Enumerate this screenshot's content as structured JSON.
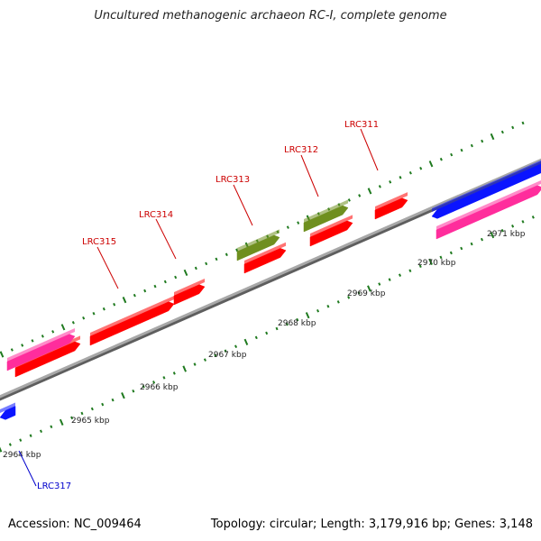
{
  "title": "Uncultured methanogenic archaeon RC-I, complete genome",
  "footer": {
    "accession": "Accession: NC_009464",
    "summary": "Topology: circular; Length: 3,179,916 bp; Genes: 3,148"
  },
  "colors": {
    "backbone": "#8c8c8c",
    "ticks": "#1f7a1f",
    "label_forward": "#cc0000",
    "label_reverse": "#0000cc",
    "gene_red": "#ff0000",
    "gene_pink": "#ff2d9c",
    "gene_olive": "#6f8f1f",
    "gene_blue": "#0a14ff"
  },
  "scale": {
    "unit": "kbp",
    "labels": [
      "2964 kbp",
      "2965 kbp",
      "2966 kbp",
      "2967 kbp",
      "2968 kbp",
      "2969 kbp",
      "2970 kbp",
      "2971 kbp"
    ]
  },
  "gene_labels": [
    {
      "text": "LRC311",
      "strand": "forward"
    },
    {
      "text": "LRC312",
      "strand": "forward"
    },
    {
      "text": "LRC313",
      "strand": "forward"
    },
    {
      "text": "LRC314",
      "strand": "forward"
    },
    {
      "text": "LRC315",
      "strand": "forward"
    },
    {
      "text": "LRC317",
      "strand": "reverse"
    }
  ],
  "features": [
    {
      "color": "gene_red",
      "track": "forward"
    },
    {
      "color": "gene_red",
      "track": "forward"
    },
    {
      "color": "gene_red",
      "track": "forward"
    },
    {
      "color": "gene_red",
      "track": "forward"
    },
    {
      "color": "gene_red",
      "track": "forward"
    },
    {
      "color": "gene_red",
      "track": "forward"
    },
    {
      "color": "gene_olive",
      "track": "forward-outer"
    },
    {
      "color": "gene_olive",
      "track": "forward-outer"
    },
    {
      "color": "gene_pink",
      "track": "forward-outer"
    },
    {
      "color": "gene_pink",
      "track": "forward-outer"
    },
    {
      "color": "gene_blue",
      "track": "reverse"
    },
    {
      "color": "gene_blue",
      "track": "reverse"
    }
  ]
}
